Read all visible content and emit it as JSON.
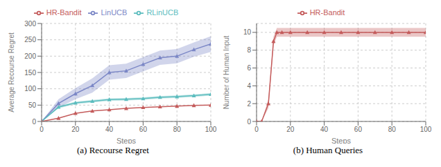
{
  "chart_data": [
    {
      "type": "line",
      "title": "(a) Recourse Regret",
      "xlabel": "Steps",
      "ylabel": "Average Recourse Regret",
      "x": [
        0,
        10,
        20,
        30,
        40,
        50,
        60,
        70,
        80,
        90,
        100
      ],
      "series": [
        {
          "name": "LinUCB",
          "color": "#7b87c6",
          "marker": "triangle",
          "values": [
            0,
            55,
            85,
            110,
            150,
            155,
            175,
            195,
            200,
            220,
            237
          ],
          "lower": [
            0,
            42,
            68,
            88,
            128,
            133,
            153,
            173,
            178,
            198,
            213
          ],
          "upper": [
            0,
            68,
            102,
            132,
            172,
            177,
            197,
            217,
            222,
            242,
            261
          ]
        },
        {
          "name": "RLinUCB",
          "color": "#5bbcbe",
          "marker": "triangle",
          "values": [
            0,
            44,
            57,
            62,
            67,
            68,
            70,
            74,
            76,
            79,
            83
          ],
          "lower": [
            0,
            40,
            53,
            58,
            63,
            64,
            66,
            70,
            72,
            75,
            79
          ],
          "upper": [
            0,
            48,
            61,
            66,
            71,
            72,
            74,
            78,
            80,
            83,
            87
          ]
        },
        {
          "name": "HR-Bandit",
          "color": "#c45b5b",
          "marker": "triangle",
          "values": [
            0,
            10,
            25,
            32,
            36,
            40,
            43,
            45,
            47,
            49,
            50
          ]
        }
      ],
      "xlim": [
        0,
        100
      ],
      "ylim": [
        0,
        300
      ],
      "xticks": [
        0,
        20,
        40,
        60,
        80,
        100
      ],
      "yticks": [
        0,
        50,
        100,
        150,
        200,
        250,
        300
      ],
      "grid": true,
      "legend": "top"
    },
    {
      "type": "line",
      "title": "(b) Human Queries",
      "xlabel": "Steps",
      "ylabel": "Number of Human Input",
      "x": [
        0,
        3,
        7,
        10,
        12,
        15,
        20,
        30,
        40,
        50,
        60,
        70,
        80,
        90,
        100
      ],
      "series": [
        {
          "name": "HR-Bandit",
          "color": "#c45b5b",
          "marker": "triangle",
          "values": [
            0,
            0,
            2,
            9,
            10,
            10,
            10,
            10,
            10,
            10,
            10,
            10,
            10,
            10,
            10
          ],
          "lower": [
            0,
            0,
            1.5,
            8.5,
            9.5,
            9.5,
            9.5,
            9.5,
            9.5,
            9.5,
            9.5,
            9.5,
            9.5,
            9.5,
            9.5
          ],
          "upper": [
            0,
            0,
            2.5,
            9.5,
            10.5,
            10.5,
            10.5,
            10.5,
            10.5,
            10.5,
            10.5,
            10.5,
            10.5,
            10.5,
            10.5
          ]
        }
      ],
      "xlim": [
        0,
        100
      ],
      "ylim": [
        0,
        11
      ],
      "xticks": [
        0,
        20,
        40,
        60,
        80,
        100
      ],
      "yticks": [
        0,
        2,
        4,
        6,
        8,
        10
      ],
      "grid": true,
      "legend": "top"
    }
  ]
}
